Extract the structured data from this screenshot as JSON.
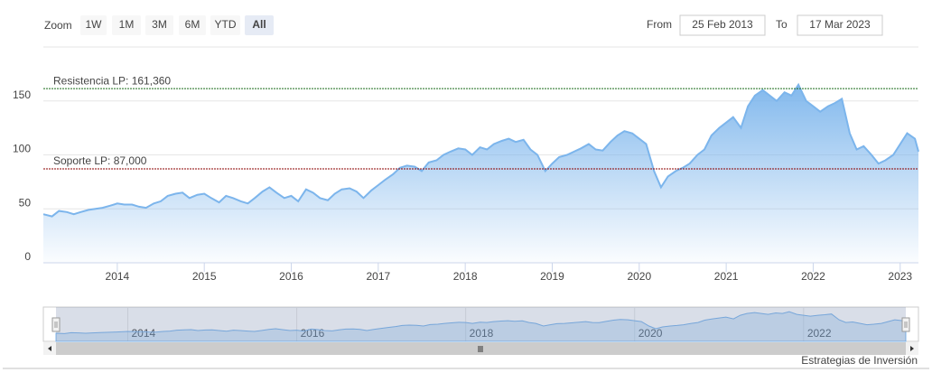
{
  "chart_data": {
    "type": "area",
    "range_selector": {
      "label": "Zoom",
      "buttons": [
        "1W",
        "1M",
        "3M",
        "6M",
        "YTD",
        "All"
      ],
      "selected": 5
    },
    "input": {
      "from_label": "From",
      "from": "25 Feb 2013",
      "to_label": "To",
      "to": "17 Mar 2023"
    },
    "x": [
      2013.15,
      2013.25,
      2013.33,
      2013.42,
      2013.5,
      2013.58,
      2013.67,
      2013.75,
      2013.83,
      2013.92,
      2014.0,
      2014.08,
      2014.17,
      2014.25,
      2014.33,
      2014.42,
      2014.5,
      2014.58,
      2014.67,
      2014.75,
      2014.83,
      2014.92,
      2015.0,
      2015.08,
      2015.17,
      2015.25,
      2015.33,
      2015.42,
      2015.5,
      2015.58,
      2015.67,
      2015.75,
      2015.83,
      2015.92,
      2016.0,
      2016.08,
      2016.17,
      2016.25,
      2016.33,
      2016.42,
      2016.5,
      2016.58,
      2016.67,
      2016.75,
      2016.83,
      2016.92,
      2017.0,
      2017.08,
      2017.17,
      2017.25,
      2017.33,
      2017.42,
      2017.5,
      2017.58,
      2017.67,
      2017.75,
      2017.83,
      2017.92,
      2018.0,
      2018.08,
      2018.17,
      2018.25,
      2018.33,
      2018.42,
      2018.5,
      2018.58,
      2018.67,
      2018.75,
      2018.83,
      2018.92,
      2019.0,
      2019.08,
      2019.17,
      2019.25,
      2019.33,
      2019.42,
      2019.5,
      2019.58,
      2019.67,
      2019.75,
      2019.83,
      2019.92,
      2020.0,
      2020.08,
      2020.17,
      2020.25,
      2020.33,
      2020.42,
      2020.5,
      2020.58,
      2020.67,
      2020.75,
      2020.83,
      2020.92,
      2021.0,
      2021.08,
      2021.17,
      2021.25,
      2021.33,
      2021.42,
      2021.5,
      2021.58,
      2021.67,
      2021.75,
      2021.83,
      2021.92,
      2022.0,
      2022.08,
      2022.17,
      2022.25,
      2022.33,
      2022.42,
      2022.5,
      2022.58,
      2022.67,
      2022.75,
      2022.83,
      2022.92,
      2023.0,
      2023.08,
      2023.17,
      2023.21
    ],
    "values": [
      45,
      43,
      48,
      47,
      45,
      47,
      49,
      50,
      51,
      53,
      55,
      54,
      54,
      52,
      51,
      55,
      57,
      62,
      64,
      65,
      60,
      63,
      64,
      60,
      56,
      62,
      60,
      57,
      55,
      60,
      66,
      70,
      65,
      60,
      62,
      57,
      68,
      65,
      60,
      58,
      64,
      68,
      69,
      66,
      60,
      67,
      72,
      77,
      82,
      88,
      90,
      89,
      85,
      93,
      95,
      100,
      103,
      106,
      105,
      100,
      107,
      105,
      110,
      113,
      115,
      112,
      114,
      105,
      100,
      85,
      92,
      98,
      100,
      103,
      106,
      110,
      105,
      104,
      112,
      118,
      122,
      120,
      115,
      110,
      85,
      70,
      80,
      85,
      88,
      92,
      100,
      105,
      118,
      125,
      130,
      135,
      125,
      145,
      155,
      160,
      155,
      150,
      158,
      155,
      165,
      150,
      145,
      140,
      145,
      148,
      152,
      120,
      105,
      108,
      100,
      92,
      95,
      100,
      110,
      120,
      115,
      103
    ],
    "color": "#7cb5ec",
    "xlim": [
      2013.15,
      2023.21
    ],
    "xticks": [
      2014,
      2015,
      2016,
      2017,
      2018,
      2019,
      2020,
      2021,
      2022,
      2023
    ],
    "ylim": [
      0,
      200
    ],
    "yticks": [
      0,
      50,
      100,
      150
    ],
    "grid": true,
    "plot_lines": [
      {
        "label": "Resistencia LP: 161,360",
        "value": 161.36,
        "color": "#1a6b1a"
      },
      {
        "label": "Soporte LP: 87,000",
        "value": 87,
        "color": "#8b0000"
      }
    ],
    "navigator": {
      "xticks": [
        2014,
        2016,
        2018,
        2020,
        2022
      ]
    },
    "credits": "Estrategias de Inversión"
  }
}
